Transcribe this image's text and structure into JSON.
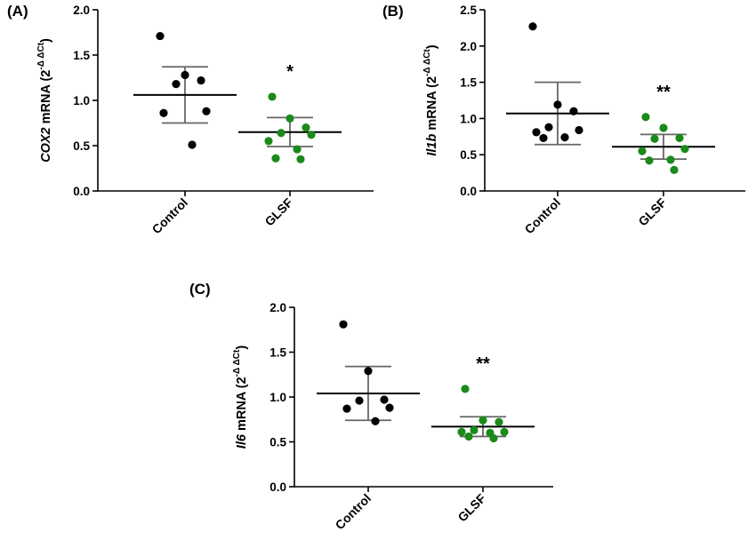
{
  "chart_data": [
    {
      "type": "scatter",
      "panel": "(A)",
      "ylabel": {
        "gene": "COX2",
        "text": " mRNA (2",
        "exp": "-Δ ΔCt",
        "close": ")"
      },
      "ylim": [
        0,
        2.0
      ],
      "yticks": [
        "0.0",
        "0.5",
        "1.0",
        "1.5",
        "2.0"
      ],
      "categories": [
        "Control",
        "GLSF"
      ],
      "series": [
        {
          "category": "Control",
          "color": "#000000",
          "mean": 1.06,
          "sd": 0.31,
          "points": [
            1.71,
            1.28,
            1.22,
            1.18,
            0.88,
            0.86,
            0.51
          ]
        },
        {
          "category": "GLSF",
          "color": "#1a8a1a",
          "mean": 0.65,
          "sd": 0.16,
          "significance": "*",
          "points": [
            1.04,
            0.8,
            0.7,
            0.64,
            0.62,
            0.55,
            0.46,
            0.36,
            0.35
          ]
        }
      ]
    },
    {
      "type": "scatter",
      "panel": "(B)",
      "ylabel": {
        "gene": "Il1b",
        "text": " mRNA (2",
        "exp": "-Δ ΔCt",
        "close": ")"
      },
      "ylim": [
        0,
        2.5
      ],
      "yticks": [
        "0.0",
        "0.5",
        "1.0",
        "1.5",
        "2.0",
        "2.5"
      ],
      "categories": [
        "Control",
        "GLSF"
      ],
      "series": [
        {
          "category": "Control",
          "color": "#000000",
          "mean": 1.07,
          "sd": 0.43,
          "points": [
            2.27,
            1.19,
            1.1,
            0.88,
            0.84,
            0.81,
            0.74,
            0.73
          ]
        },
        {
          "category": "GLSF",
          "color": "#1a8a1a",
          "mean": 0.61,
          "sd": 0.17,
          "significance": "**",
          "points": [
            1.02,
            0.87,
            0.73,
            0.72,
            0.58,
            0.55,
            0.43,
            0.42,
            0.29
          ]
        }
      ]
    },
    {
      "type": "scatter",
      "panel": "(C)",
      "ylabel": {
        "gene": "Il6",
        "text": " mRNA (2",
        "exp": "-Δ ΔCt",
        "close": ")"
      },
      "ylim": [
        0,
        2.0
      ],
      "yticks": [
        "0.0",
        "0.5",
        "1.0",
        "1.5",
        "2.0"
      ],
      "categories": [
        "Control",
        "GLSF"
      ],
      "series": [
        {
          "category": "Control",
          "color": "#000000",
          "mean": 1.04,
          "sd": 0.3,
          "points": [
            1.81,
            1.29,
            0.97,
            0.96,
            0.88,
            0.87,
            0.73
          ]
        },
        {
          "category": "GLSF",
          "color": "#1a8a1a",
          "mean": 0.67,
          "sd": 0.11,
          "significance": "**",
          "points": [
            1.09,
            0.74,
            0.72,
            0.63,
            0.61,
            0.61,
            0.6,
            0.56,
            0.54
          ]
        }
      ]
    }
  ]
}
